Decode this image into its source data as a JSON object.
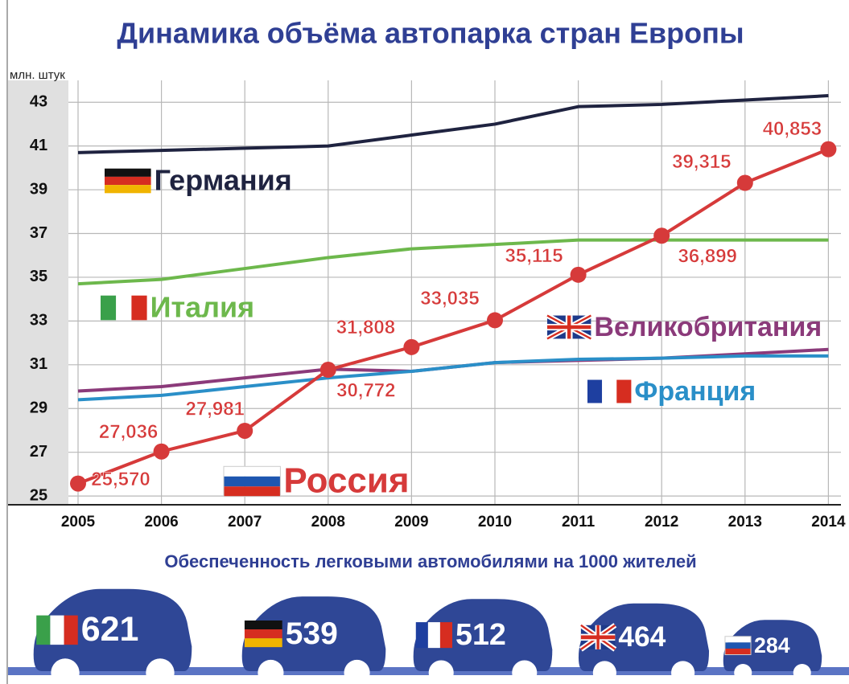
{
  "chart_data": [
    {
      "type": "line",
      "title": "Динамика объёма автопарка стран Европы",
      "y_label": "млн. штук",
      "categories": [
        "2005",
        "2006",
        "2007",
        "2008",
        "2009",
        "2010",
        "2011",
        "2012",
        "2013",
        "2014"
      ],
      "series": [
        {
          "name": "Германия",
          "color": "#1f2340",
          "values": [
            40.7,
            40.8,
            40.9,
            41.0,
            41.5,
            42.0,
            42.8,
            42.9,
            43.1,
            43.3
          ]
        },
        {
          "name": "Италия",
          "color": "#6db84c",
          "values": [
            34.7,
            34.9,
            35.4,
            35.9,
            36.3,
            36.5,
            36.7,
            36.7,
            36.7,
            36.7
          ]
        },
        {
          "name": "Великобритания",
          "color": "#8b3a7a",
          "values": [
            29.8,
            30.0,
            30.4,
            30.8,
            30.7,
            31.1,
            31.2,
            31.3,
            31.5,
            31.7
          ]
        },
        {
          "name": "Франция",
          "color": "#2a8fc8",
          "values": [
            29.4,
            29.6,
            30.0,
            30.4,
            30.7,
            31.1,
            31.25,
            31.3,
            31.4,
            31.4
          ]
        },
        {
          "name": "Россия",
          "color": "#d63a3a",
          "values": [
            25.57,
            27.036,
            27.981,
            30.772,
            31.808,
            33.035,
            35.115,
            36.899,
            39.315,
            40.853
          ],
          "value_labels": [
            "25,570",
            "27,036",
            "27,981",
            "30,772",
            "31,808",
            "33,035",
            "35,115",
            "36,899",
            "39,315",
            "40,853"
          ]
        }
      ],
      "ylim": [
        24.6,
        44
      ],
      "yticks": [
        25,
        27,
        29,
        31,
        33,
        35,
        37,
        39,
        41,
        43
      ],
      "grid": true
    },
    {
      "type": "pictogram",
      "title": "Обеспеченность легковыми автомобилями на 1000 жителей",
      "values": [
        621,
        539,
        512,
        464,
        284
      ],
      "color": "#2f4796"
    }
  ]
}
